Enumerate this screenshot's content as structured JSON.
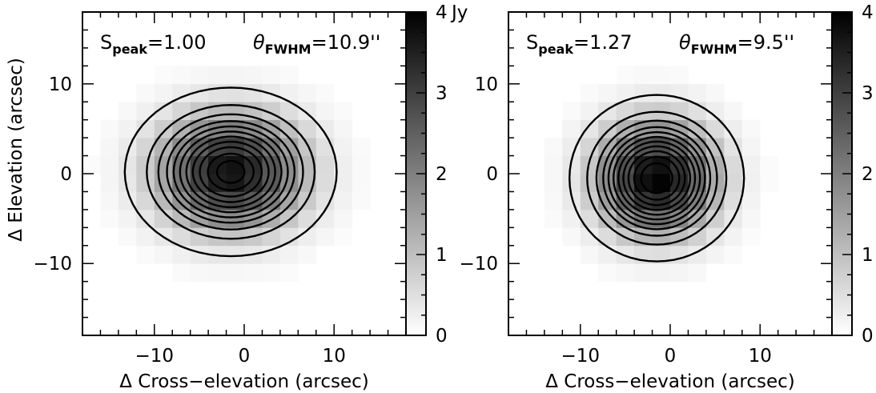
{
  "chart_data": [
    {
      "type": "heatmap",
      "title": "",
      "xlabel": "Δ Cross−elevation (arcsec)",
      "ylabel": "Δ Elevation (arcsec)",
      "xlim": [
        -18,
        18
      ],
      "ylim": [
        -18,
        18
      ],
      "x_ticks": [
        -10,
        0,
        10
      ],
      "y_ticks": [
        -10,
        0,
        10
      ],
      "x_tick_labels": [
        "−10",
        "0",
        "10"
      ],
      "y_tick_labels": [
        "−10",
        "0",
        "10"
      ],
      "annotation_left": {
        "symbol": "S",
        "sub": "peak",
        "text": "=1.00"
      },
      "annotation_right": {
        "symbol": "θ",
        "sub": "FWHM",
        "text": "=10.9''"
      },
      "colorbar": {
        "min": 0,
        "max": 4,
        "ticks": [
          0,
          1,
          2,
          3,
          4
        ],
        "unit": "Jy",
        "colormap": "white-to-black"
      },
      "source": {
        "peak_jy": 3.8,
        "center": [
          -1.5,
          0.2
        ],
        "sigma_x": 5.4,
        "sigma_y": 4.3
      },
      "contour_levels": [
        0.35,
        0.85,
        1.25,
        1.6,
        1.9,
        2.2,
        2.5,
        2.8,
        3.1,
        3.4,
        3.65
      ],
      "grid": false,
      "legend": "none"
    },
    {
      "type": "heatmap",
      "title": "",
      "xlabel": "Δ Cross−elevation (arcsec)",
      "ylabel": "",
      "xlim": [
        -18,
        18
      ],
      "ylim": [
        -18,
        18
      ],
      "x_ticks": [
        -10,
        0,
        10
      ],
      "y_ticks": [
        -10,
        0,
        10
      ],
      "x_tick_labels": [
        "−10",
        "0",
        "10"
      ],
      "y_tick_labels": [
        "−10",
        "0",
        "10"
      ],
      "annotation_left": {
        "symbol": "S",
        "sub": "peak",
        "text": "=1.27"
      },
      "annotation_right": {
        "symbol": "θ",
        "sub": "FWHM",
        "text": "=9.5''"
      },
      "colorbar": {
        "min": 0,
        "max": 4,
        "ticks": [
          0,
          1,
          2,
          3,
          4
        ],
        "unit": "",
        "colormap": "white-to-black"
      },
      "source": {
        "peak_jy": 4.0,
        "center": [
          -1.5,
          -0.5
        ],
        "sigma_x": 4.4,
        "sigma_y": 4.2
      },
      "contour_levels": [
        0.35,
        0.85,
        1.25,
        1.6,
        1.9,
        2.2,
        2.5,
        2.8,
        3.1,
        3.4,
        3.7
      ],
      "grid": false,
      "legend": "none"
    }
  ]
}
